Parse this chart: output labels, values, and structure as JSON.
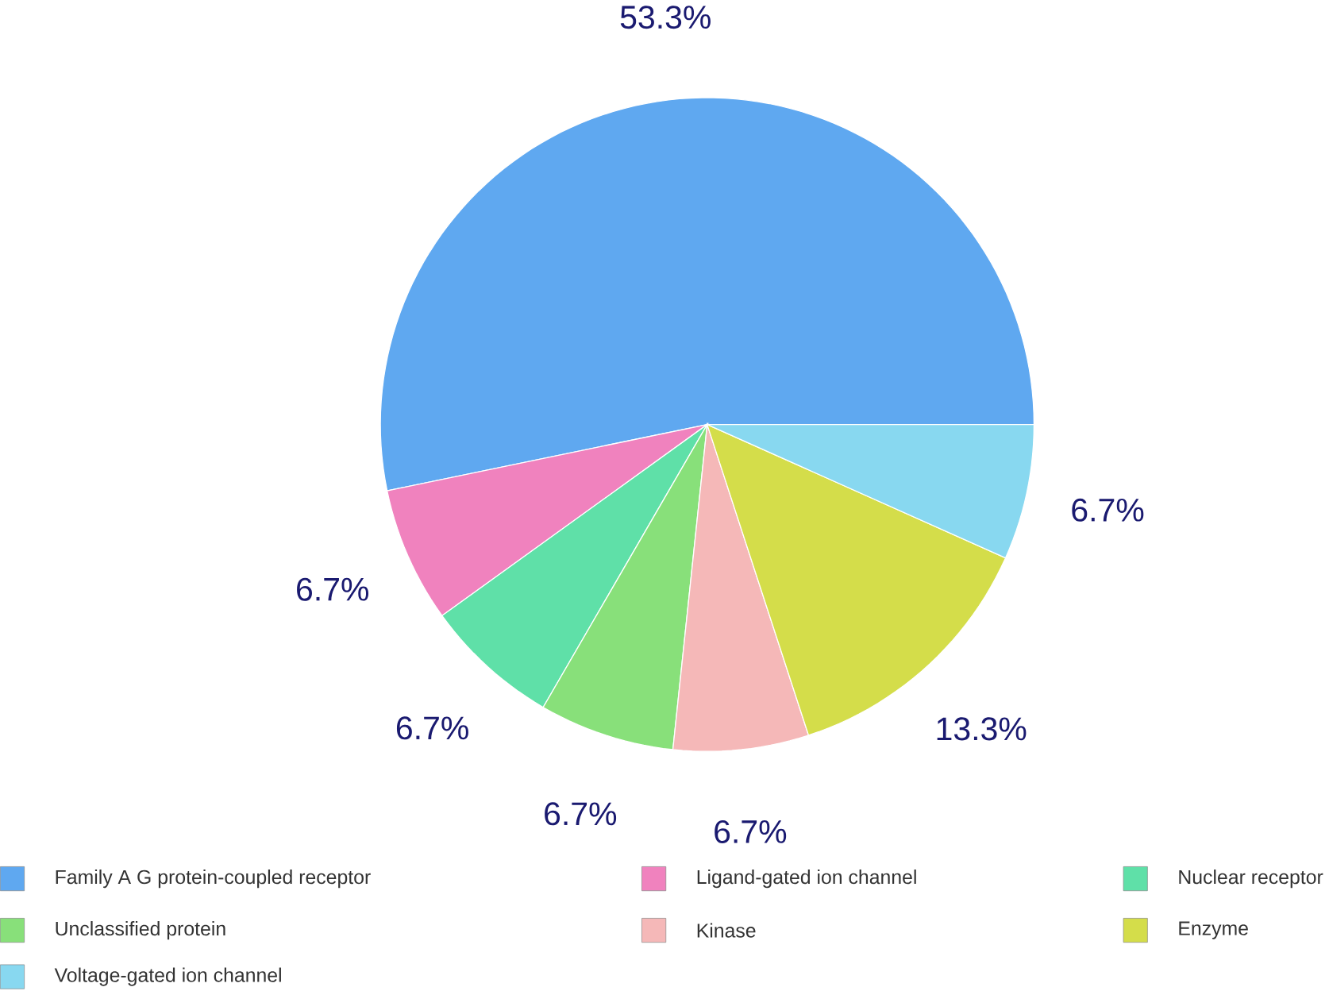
{
  "chart_data": {
    "type": "pie",
    "categories": [
      "Family A G protein-coupled receptor",
      "Ligand-gated ion channel",
      "Nuclear receptor",
      "Unclassified protein",
      "Kinase",
      "Enzyme",
      "Voltage-gated ion channel"
    ],
    "values": [
      53.3,
      6.7,
      6.7,
      6.7,
      6.7,
      13.3,
      6.7
    ],
    "colors": [
      "#5fa8f0",
      "#f082be",
      "#5fe0a8",
      "#88e07a",
      "#f5b8b8",
      "#d4dd4a",
      "#88d8f0"
    ],
    "value_labels": [
      "53.3%",
      "6.7%",
      "6.7%",
      "6.7%",
      "6.7%",
      "13.3%",
      "6.7%"
    ],
    "legend": "bottom"
  }
}
